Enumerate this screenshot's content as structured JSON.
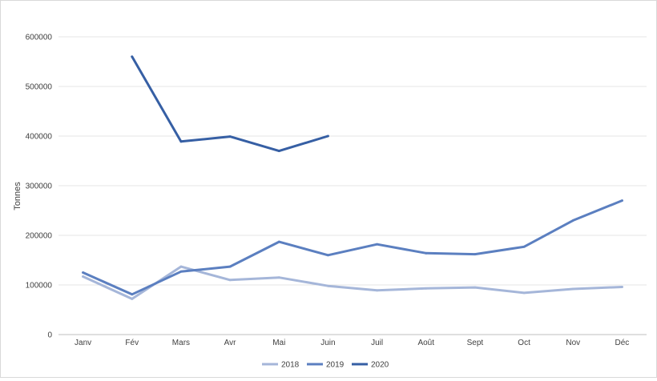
{
  "chart_data": {
    "type": "line",
    "title": "",
    "xlabel": "",
    "ylabel": "Tonnes",
    "ylim": [
      0,
      600000
    ],
    "yticks": [
      "0",
      "100000",
      "200000",
      "300000",
      "400000",
      "500000",
      "600000"
    ],
    "categories": [
      "Janv",
      "Fév",
      "Mars",
      "Avr",
      "Mai",
      "Juin",
      "Juil",
      "Août",
      "Sept",
      "Oct",
      "Nov",
      "Déc"
    ],
    "grid": true,
    "legend_position": "bottom",
    "series": [
      {
        "name": "2018",
        "color": "#a5b6d9",
        "values": [
          117000,
          72000,
          137000,
          110000,
          115000,
          98000,
          89000,
          93000,
          95000,
          84000,
          92000,
          96000
        ]
      },
      {
        "name": "2019",
        "color": "#5b7fc0",
        "values": [
          125000,
          81000,
          127000,
          137000,
          187000,
          160000,
          182000,
          164000,
          162000,
          177000,
          230000,
          270000
        ]
      },
      {
        "name": "2020",
        "color": "#365fa4",
        "values": [
          null,
          560000,
          389000,
          399000,
          370000,
          400000,
          null,
          null,
          null,
          null,
          null,
          null
        ]
      }
    ]
  }
}
